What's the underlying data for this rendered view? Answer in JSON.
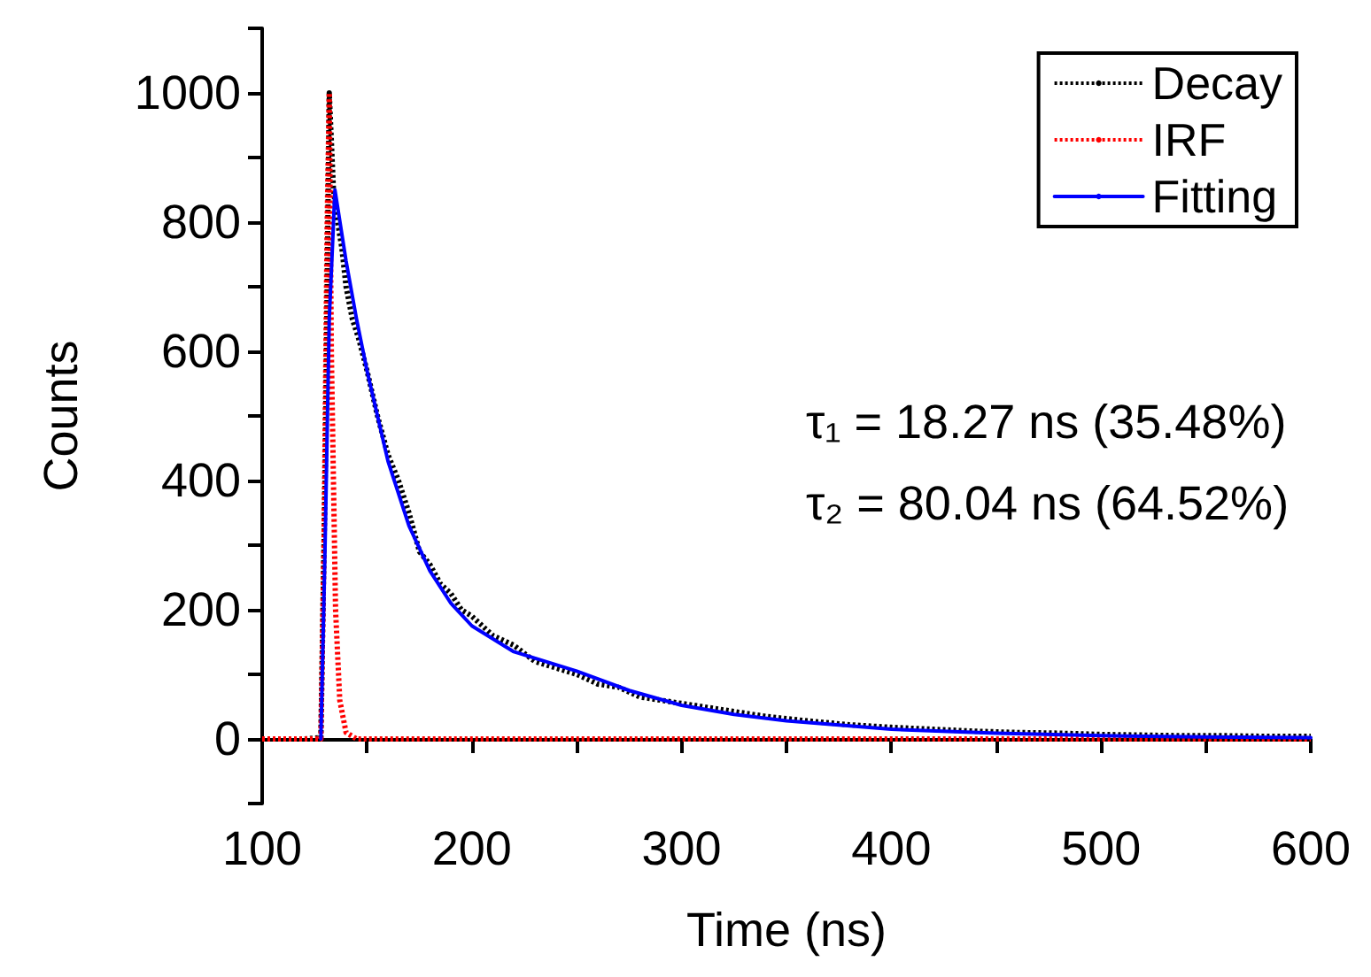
{
  "chart_data": {
    "type": "line",
    "xlabel": "Time (ns)",
    "ylabel": "Counts",
    "xlim": [
      100,
      600
    ],
    "xticks": [
      100,
      {
        "value": 150,
        "label": null
      },
      200,
      {
        "value": 250,
        "label": null
      },
      300,
      {
        "value": 350,
        "label": null
      },
      400,
      {
        "value": 450,
        "label": null
      },
      500,
      {
        "value": 550,
        "label": null
      },
      600
    ],
    "ylim": [
      -100,
      1100
    ],
    "yticks": [
      {
        "value": -100,
        "label": null
      },
      0,
      {
        "value": 100,
        "label": null
      },
      200,
      {
        "value": 300,
        "label": null
      },
      400,
      {
        "value": 500,
        "label": null
      },
      600,
      {
        "value": 700,
        "label": null
      },
      800,
      {
        "value": 900,
        "label": null
      },
      1000,
      {
        "value": 1100,
        "label": null
      }
    ],
    "grid": false,
    "legend": "top right",
    "marker": "none",
    "annotations": [
      "τ₁ = 18.27 ns (35.48%)",
      "τ₂ = 80.04 ns (64.52%)"
    ],
    "series": [
      {
        "name": "Decay",
        "color": "#000000",
        "line_style": "dotted",
        "x": [
          100,
          110,
          120,
          128,
          130,
          132,
          134,
          136,
          138,
          140,
          143,
          146,
          150,
          155,
          160,
          165,
          170,
          175,
          180,
          185,
          190,
          195,
          200,
          210,
          220,
          230,
          240,
          250,
          260,
          270,
          280,
          290,
          300,
          320,
          340,
          360,
          380,
          400,
          420,
          440,
          460,
          480,
          500,
          520,
          540,
          560,
          580,
          600
        ],
        "values": [
          0,
          0,
          0,
          2,
          400,
          1000,
          850,
          800,
          760,
          700,
          650,
          620,
          570,
          500,
          440,
          400,
          350,
          290,
          270,
          240,
          225,
          200,
          190,
          160,
          145,
          120,
          110,
          100,
          85,
          80,
          65,
          60,
          55,
          45,
          35,
          28,
          22,
          18,
          15,
          12,
          10,
          9,
          7,
          6,
          5,
          5,
          4,
          4
        ]
      },
      {
        "name": "IRF",
        "color": "#ff0000",
        "line_style": "dotted",
        "x": [
          100,
          128,
          129.5,
          131,
          132,
          133,
          135,
          137,
          140,
          145,
          150,
          600
        ],
        "values": [
          0,
          0,
          300,
          800,
          1000,
          600,
          200,
          60,
          10,
          0,
          0,
          0
        ]
      },
      {
        "name": "Fitting",
        "color": "#0000ff",
        "line_style": "solid",
        "x": [
          128,
          130,
          132,
          134.7,
          140,
          145,
          150,
          160,
          170,
          180,
          190,
          200,
          220,
          250,
          275,
          300,
          325,
          350,
          400,
          450,
          500,
          550,
          600
        ],
        "values": [
          0,
          300,
          650,
          850,
          740,
          650,
          570,
          430,
          330,
          260,
          210,
          175,
          135,
          105,
          75,
          52,
          38,
          28,
          15,
          9,
          5,
          3,
          2
        ]
      }
    ]
  }
}
